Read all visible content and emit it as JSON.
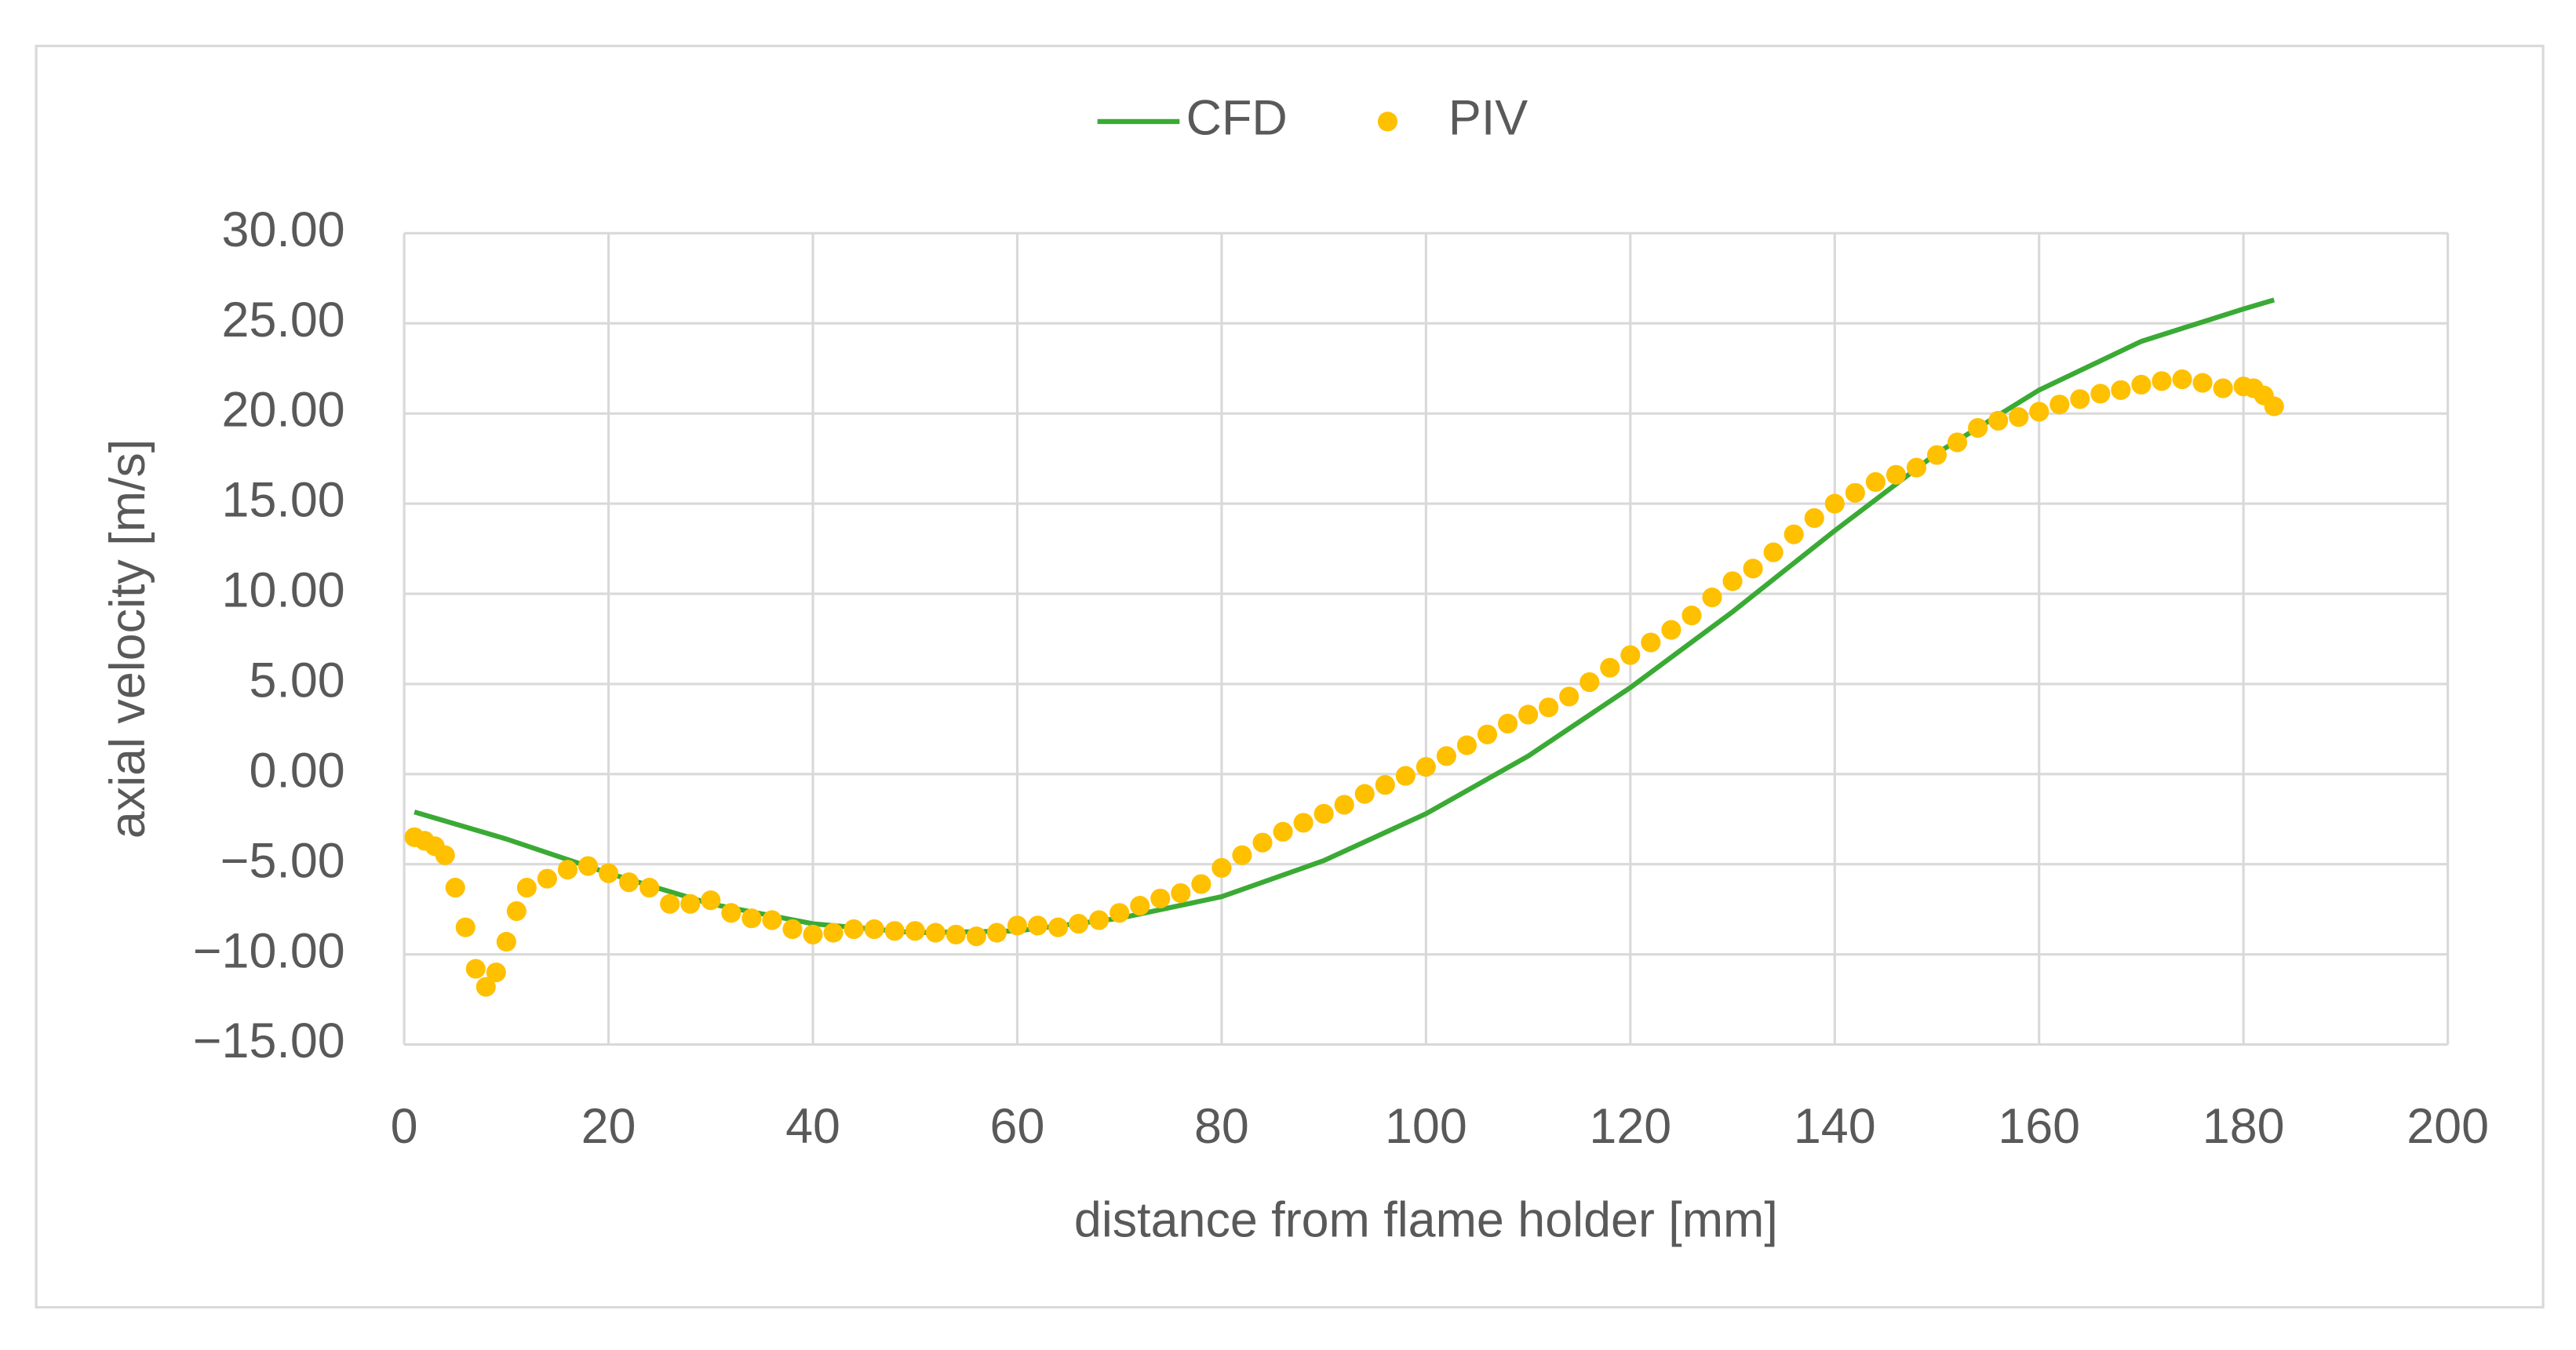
{
  "chart_data": {
    "type": "line",
    "x_label": "distance from flame holder [mm]",
    "y_label": "axial velocity [m/s]",
    "xlim": [
      0,
      200
    ],
    "xticks": [
      0,
      20,
      40,
      60,
      80,
      100,
      120,
      140,
      160,
      180,
      200
    ],
    "ylim": [
      -15,
      30
    ],
    "yticks": [
      {
        "value": -15,
        "label": "−15.00"
      },
      {
        "value": -10,
        "label": "−10.00"
      },
      {
        "value": -5,
        "label": "−5.00"
      },
      {
        "value": 0,
        "label": "0.00"
      },
      {
        "value": 5,
        "label": "5.00"
      },
      {
        "value": 10,
        "label": "10.00"
      },
      {
        "value": 15,
        "label": "15.00"
      },
      {
        "value": 20,
        "label": "20.00"
      },
      {
        "value": 25,
        "label": "25.00"
      },
      {
        "value": 30,
        "label": "30.00"
      }
    ],
    "grid": true,
    "legend": "top",
    "series": [
      {
        "name": "CFD",
        "color": "#3aaa35",
        "mode": "line",
        "x": [
          1,
          10,
          20,
          30,
          40,
          50,
          60,
          70,
          80,
          90,
          100,
          110,
          120,
          130,
          140,
          150,
          160,
          170,
          180,
          183
        ],
        "values": [
          -2.1,
          -3.6,
          -5.5,
          -7.2,
          -8.3,
          -8.8,
          -8.7,
          -8.0,
          -6.8,
          -4.8,
          -2.2,
          1.0,
          4.8,
          9.0,
          13.5,
          17.8,
          21.3,
          24.0,
          25.8,
          26.3
        ]
      },
      {
        "name": "PIV",
        "color": "#ffc000",
        "mode": "markers",
        "x": [
          1,
          2,
          3,
          4,
          5,
          6,
          7,
          8,
          9,
          10,
          11,
          12,
          14,
          16,
          18,
          20,
          22,
          24,
          26,
          28,
          30,
          32,
          34,
          36,
          38,
          40,
          42,
          44,
          46,
          48,
          50,
          52,
          54,
          56,
          58,
          60,
          62,
          64,
          66,
          68,
          70,
          72,
          74,
          76,
          78,
          80,
          82,
          84,
          86,
          88,
          90,
          92,
          94,
          96,
          98,
          100,
          102,
          104,
          106,
          108,
          110,
          112,
          114,
          116,
          118,
          120,
          122,
          124,
          126,
          128,
          130,
          132,
          134,
          136,
          138,
          140,
          142,
          144,
          146,
          148,
          150,
          152,
          154,
          156,
          158,
          160,
          162,
          164,
          166,
          168,
          170,
          172,
          174,
          176,
          178,
          180,
          181,
          182,
          183
        ],
        "values": [
          -3.5,
          -3.7,
          -4.0,
          -4.5,
          -6.3,
          -8.5,
          -10.8,
          -11.8,
          -11.0,
          -9.3,
          -7.6,
          -6.3,
          -5.8,
          -5.3,
          -5.1,
          -5.5,
          -6.0,
          -6.3,
          -7.2,
          -7.2,
          -7.0,
          -7.7,
          -8.0,
          -8.1,
          -8.6,
          -8.9,
          -8.8,
          -8.6,
          -8.6,
          -8.7,
          -8.7,
          -8.8,
          -8.9,
          -9.0,
          -8.8,
          -8.4,
          -8.4,
          -8.5,
          -8.3,
          -8.1,
          -7.7,
          -7.3,
          -6.9,
          -6.6,
          -6.1,
          -5.2,
          -4.5,
          -3.8,
          -3.2,
          -2.7,
          -2.2,
          -1.7,
          -1.1,
          -0.6,
          -0.1,
          0.4,
          1.0,
          1.6,
          2.2,
          2.8,
          3.3,
          3.7,
          4.3,
          5.1,
          5.9,
          6.6,
          7.3,
          8.0,
          8.8,
          9.8,
          10.7,
          11.4,
          12.3,
          13.3,
          14.2,
          15.0,
          15.6,
          16.2,
          16.6,
          17.0,
          17.7,
          18.4,
          19.2,
          19.6,
          19.8,
          20.1,
          20.5,
          20.8,
          21.1,
          21.3,
          21.6,
          21.8,
          21.9,
          21.7,
          21.4,
          21.5,
          21.4,
          21.0,
          20.4
        ]
      }
    ]
  }
}
